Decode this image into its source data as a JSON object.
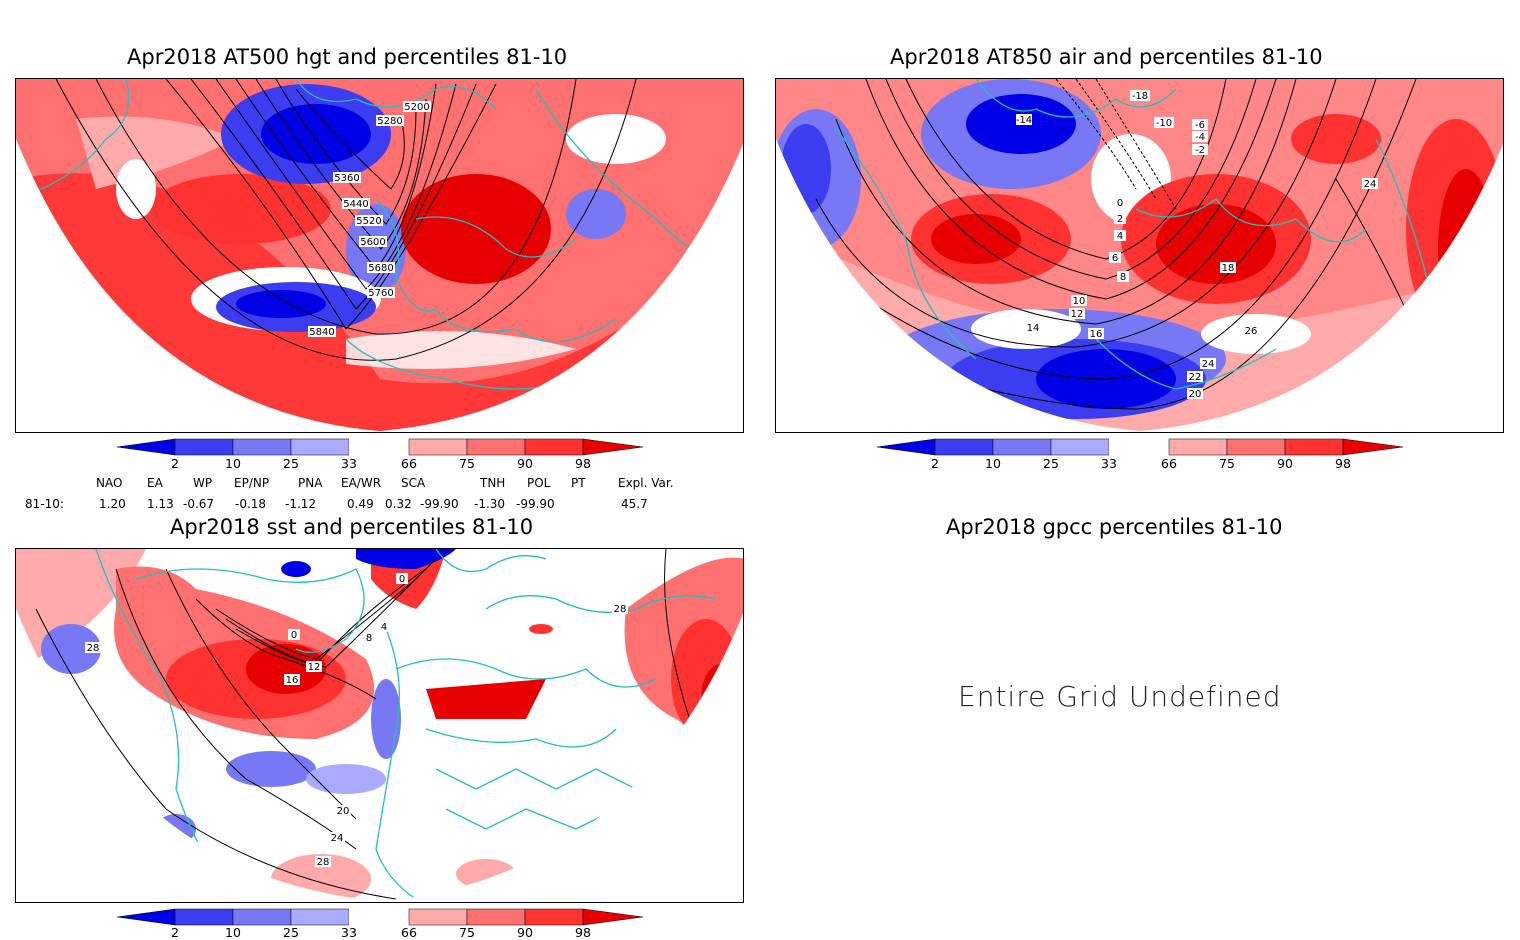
{
  "panels": [
    {
      "title": "Apr2018 AT500 hgt and percentiles 81-10",
      "contour_labels": [
        "5200",
        "5280",
        "5360",
        "5440",
        "5520",
        "5600",
        "5680",
        "5760",
        "5840"
      ]
    },
    {
      "title": "Apr2018 AT850 air and percentiles 81-10",
      "contour_labels": [
        "-18",
        "-14",
        "-10",
        "-6",
        "-4",
        "-2",
        "0",
        "2",
        "4",
        "6",
        "8",
        "10",
        "12",
        "14",
        "16",
        "18",
        "20",
        "22",
        "24",
        "26"
      ]
    },
    {
      "title": "Apr2018 sst and percentiles 81-10",
      "contour_labels": [
        "0",
        "4",
        "8",
        "12",
        "16",
        "20",
        "24",
        "28"
      ]
    },
    {
      "title": "Apr2018 gpcc percentiles 81-10",
      "message": "Entire Grid Undefined"
    }
  ],
  "colorbar": {
    "labels": [
      "2",
      "10",
      "25",
      "33",
      "66",
      "75",
      "90",
      "98"
    ],
    "colors": [
      "#0000e6",
      "#3c3cf0",
      "#7878f5",
      "#aaaaff",
      "#ffffff",
      "#ffaaaa",
      "#ff7070",
      "#ff3232",
      "#e60000"
    ]
  },
  "indices": {
    "headers": [
      "NAO",
      "EA",
      "WP",
      "EP/NP",
      "PNA",
      "EA/WR",
      "SCA",
      "TNH",
      "POL",
      "PT",
      "Expl. Var."
    ],
    "row_label": "81-10:",
    "values": [
      "1.20",
      "1.13",
      "-0.67",
      "-0.18",
      "-1.12",
      "0.49",
      "0.32",
      "-99.90",
      "-1.30",
      "-99.90",
      "45.7"
    ]
  },
  "colors": {
    "coast": "#20c0c0",
    "contour": "#000000",
    "warm": "#ff3232",
    "cold": "#3c3cf0"
  }
}
